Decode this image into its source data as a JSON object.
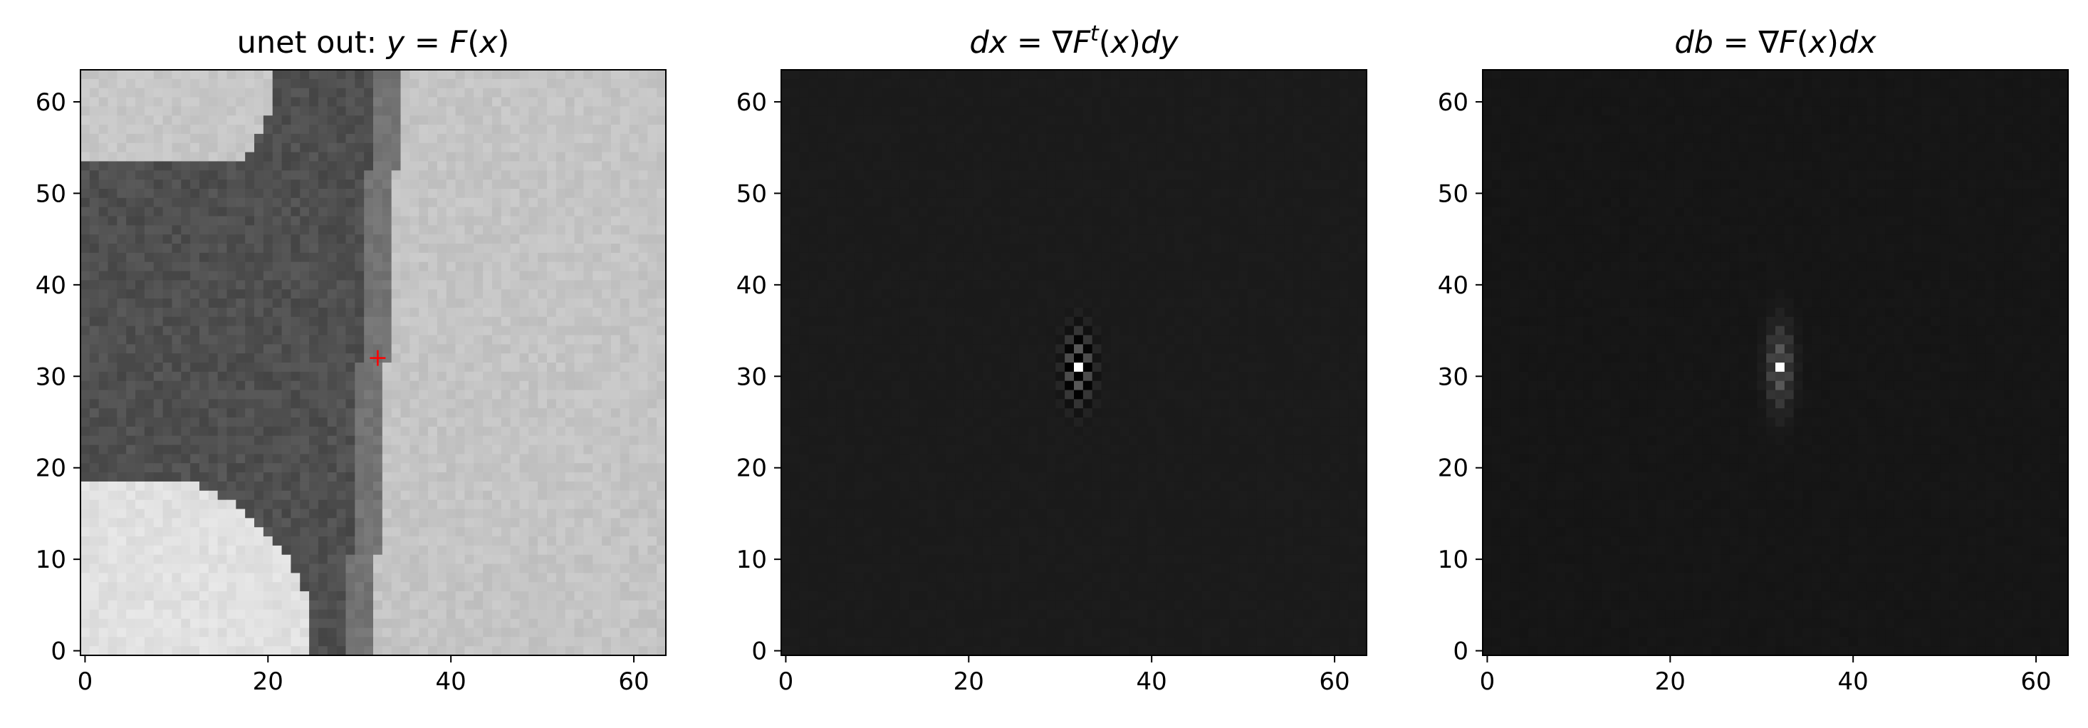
{
  "chart_data": [
    {
      "type": "heatmap",
      "id": "unet-out",
      "title_parts": [
        {
          "text": "unet out: ",
          "italic": false
        },
        {
          "text": "y",
          "italic": true
        },
        {
          "text": " = ",
          "italic": false
        },
        {
          "text": "F",
          "italic": true
        },
        {
          "text": "(",
          "italic": false
        },
        {
          "text": "x",
          "italic": true
        },
        {
          "text": ")",
          "italic": false
        }
      ],
      "image": {
        "kind": "grayscale-crop",
        "rows": 64,
        "cols": 64,
        "description_values": {
          "dark_region": "left",
          "bright_region": "right",
          "boundary_col_top": 33,
          "boundary_col_bottom": 30
        }
      },
      "xlim": [
        -0.5,
        63.5
      ],
      "ylim": [
        63.5,
        -0.5
      ],
      "xticks": [
        0,
        20,
        40,
        60
      ],
      "yticks": [
        0,
        10,
        20,
        30,
        40,
        50,
        60
      ],
      "marker": {
        "symbol": "+",
        "x": 32,
        "y": 32,
        "color": "#ff0000"
      }
    },
    {
      "type": "heatmap",
      "id": "dx",
      "title_parts": [
        {
          "text": "dx",
          "italic": true
        },
        {
          "text": " = ∇",
          "italic": false
        },
        {
          "text": "F",
          "italic": true
        },
        {
          "text": "t",
          "italic": true,
          "sup": true
        },
        {
          "text": "(",
          "italic": false
        },
        {
          "text": "x",
          "italic": true
        },
        {
          "text": ")",
          "italic": false
        },
        {
          "text": "dy",
          "italic": true
        }
      ],
      "image": {
        "kind": "gradient-response",
        "rows": 64,
        "cols": 64,
        "peak": [
          32,
          32
        ]
      },
      "xlim": [
        -0.5,
        63.5
      ],
      "ylim": [
        63.5,
        -0.5
      ],
      "xticks": [
        0,
        20,
        40,
        60
      ],
      "yticks": [
        0,
        10,
        20,
        30,
        40,
        50,
        60
      ]
    },
    {
      "type": "heatmap",
      "id": "db",
      "title_parts": [
        {
          "text": "db",
          "italic": true
        },
        {
          "text": " = ∇",
          "italic": false
        },
        {
          "text": "F",
          "italic": true
        },
        {
          "text": "(",
          "italic": false
        },
        {
          "text": "x",
          "italic": true
        },
        {
          "text": ")",
          "italic": false
        },
        {
          "text": "dx",
          "italic": true
        }
      ],
      "image": {
        "kind": "gradient-response",
        "rows": 64,
        "cols": 64,
        "peak": [
          32,
          32
        ]
      },
      "xlim": [
        -0.5,
        63.5
      ],
      "ylim": [
        63.5,
        -0.5
      ],
      "xticks": [
        0,
        20,
        40,
        60
      ],
      "yticks": [
        0,
        10,
        20,
        30,
        40,
        50,
        60
      ]
    }
  ]
}
